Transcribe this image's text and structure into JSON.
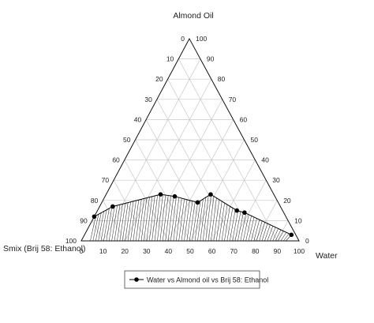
{
  "chart_data": {
    "type": "ternary",
    "title": "",
    "vertex_labels": {
      "top": "Almond Oil",
      "bottom_left": "Smix (Brij 58: Ethanol)",
      "bottom_right": "Water"
    },
    "ticks": [
      0,
      10,
      20,
      30,
      40,
      50,
      60,
      70,
      80,
      90,
      100
    ],
    "grid": true,
    "series": [
      {
        "name": "Water vs Almond oil vs Brij 58: Ethanol",
        "color": "#000000",
        "marker": "filled-circle",
        "points": [
          {
            "oil": 12,
            "water": 0,
            "smix": 88
          },
          {
            "oil": 17,
            "water": 6,
            "smix": 77
          },
          {
            "oil": 23,
            "water": 25,
            "smix": 52
          },
          {
            "oil": 22,
            "water": 32,
            "smix": 46
          },
          {
            "oil": 19,
            "water": 44,
            "smix": 37
          },
          {
            "oil": 23,
            "water": 48,
            "smix": 29
          },
          {
            "oil": 15,
            "water": 64,
            "smix": 21
          },
          {
            "oil": 14,
            "water": 68,
            "smix": 18
          },
          {
            "oil": 3,
            "water": 95,
            "smix": 2
          }
        ]
      }
    ],
    "shaded_region": "hatched area between the curve and the Smix–Water baseline",
    "legend": {
      "position": "bottom",
      "entries": [
        "Water vs Almond oil vs Brij 58: Ethanol"
      ]
    }
  }
}
